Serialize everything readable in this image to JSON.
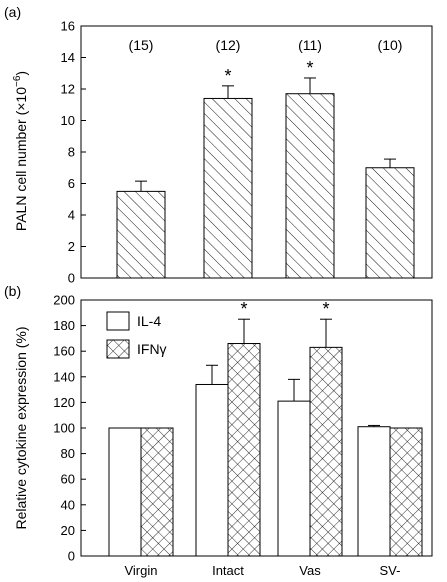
{
  "chart_data": [
    {
      "panel": "(a)",
      "type": "bar",
      "categories": [
        "Virgin",
        "Intact",
        "Vas",
        "SV-"
      ],
      "values": [
        5.5,
        11.4,
        11.7,
        7.0
      ],
      "errors": [
        0.65,
        0.8,
        1.0,
        0.55
      ],
      "counts": [
        "(15)",
        "(12)",
        "(11)",
        "(10)"
      ],
      "significance": [
        "",
        "*",
        "*",
        ""
      ],
      "ylabel_main": "PALN cell number (×10",
      "ylabel_sup": "−6",
      "ylabel_close": ")",
      "ylim": [
        0,
        16
      ],
      "yticks": [
        "0",
        "2",
        "4",
        "6",
        "8",
        "10",
        "12",
        "14",
        "16"
      ],
      "pattern": "diagonal-hatch",
      "grid": false
    },
    {
      "panel": "(b)",
      "type": "bar",
      "categories": [
        "Virgin",
        "Intact",
        "Vas",
        "SV-"
      ],
      "series": [
        {
          "name": "IL-4",
          "values": [
            100,
            134,
            121,
            101
          ],
          "errors": [
            0,
            15,
            17,
            1
          ],
          "significance": [
            "",
            "",
            "",
            ""
          ],
          "pattern": "white"
        },
        {
          "name": "IFNγ",
          "values": [
            100,
            166,
            163,
            100
          ],
          "errors": [
            0,
            19,
            22,
            0
          ],
          "significance": [
            "",
            "*",
            "*",
            ""
          ],
          "pattern": "crosshatch"
        }
      ],
      "ylabel": "Relative cytokine expression (%)",
      "ylim": [
        0,
        200
      ],
      "yticks": [
        "0",
        "20",
        "40",
        "60",
        "80",
        "100",
        "120",
        "140",
        "160",
        "180",
        "200"
      ],
      "legend_position": "top-left",
      "grid": false
    }
  ]
}
